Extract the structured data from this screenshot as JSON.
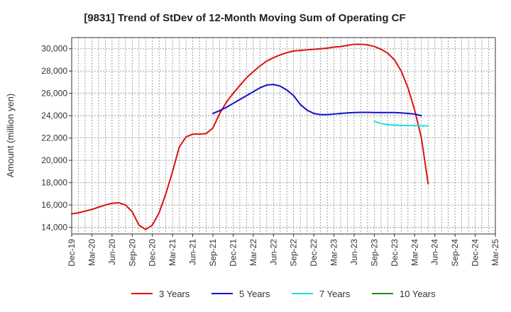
{
  "chart_data": {
    "type": "line",
    "title": "[9831]  Trend of StDev of 12-Month Moving Sum of Operating CF",
    "xlabel": "",
    "ylabel": "Amount (million yen)",
    "ylim": [
      13400,
      31000
    ],
    "yticks": [
      14000,
      16000,
      18000,
      20000,
      22000,
      24000,
      26000,
      28000,
      30000
    ],
    "ytick_labels": [
      "14,000",
      "16,000",
      "18,000",
      "20,000",
      "22,000",
      "24,000",
      "26,000",
      "28,000",
      "30,000"
    ],
    "x_tick_labels": [
      "Dec-19",
      "Mar-20",
      "Jun-20",
      "Sep-20",
      "Dec-20",
      "Mar-21",
      "Jun-21",
      "Sep-21",
      "Dec-21",
      "Mar-22",
      "Jun-22",
      "Sep-22",
      "Dec-22",
      "Mar-23",
      "Jun-23",
      "Sep-23",
      "Dec-23",
      "Mar-24",
      "Jun-24",
      "Sep-24",
      "Dec-24",
      "Mar-25"
    ],
    "x_month_range": [
      0,
      63
    ],
    "grid": true,
    "legend_position": "bottom",
    "series": [
      {
        "name": "3 Years",
        "color": "#dd1111",
        "start_month": 0,
        "values": [
          15200,
          15300,
          15450,
          15600,
          15800,
          16000,
          16150,
          16200,
          16000,
          15400,
          14200,
          13800,
          14200,
          15300,
          17000,
          19000,
          21200,
          22100,
          22350,
          22350,
          22400,
          22900,
          24200,
          25200,
          26000,
          26700,
          27400,
          27950,
          28450,
          28900,
          29200,
          29450,
          29650,
          29800,
          29850,
          29900,
          29950,
          30000,
          30050,
          30150,
          30200,
          30300,
          30400,
          30400,
          30350,
          30200,
          29950,
          29600,
          29000,
          28000,
          26500,
          24500,
          22000,
          17900
        ]
      },
      {
        "name": "5 Years",
        "color": "#1111cc",
        "start_month": 21,
        "values": [
          24200,
          24450,
          24750,
          25100,
          25450,
          25800,
          26150,
          26500,
          26750,
          26800,
          26650,
          26300,
          25800,
          25000,
          24500,
          24200,
          24100,
          24100,
          24150,
          24200,
          24250,
          24280,
          24300,
          24300,
          24280,
          24280,
          24280,
          24280,
          24250,
          24200,
          24150,
          24000
        ]
      },
      {
        "name": "7 Years",
        "color": "#22dddd",
        "start_month": 45,
        "values": [
          23500,
          23300,
          23200,
          23150,
          23130,
          23120,
          23110,
          23100,
          23100
        ]
      },
      {
        "name": "10 Years",
        "color": "#228822",
        "start_month": 53,
        "values": []
      }
    ]
  }
}
